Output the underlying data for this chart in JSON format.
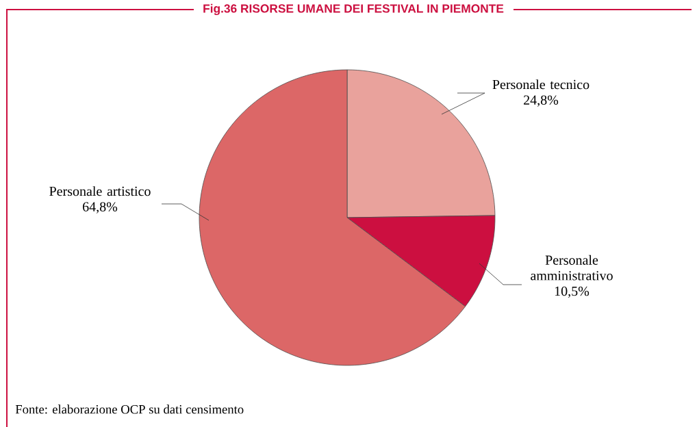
{
  "chart_data": {
    "type": "pie",
    "title": "Fig.36 RISORSE UMANE DEI FESTIVAL IN PIEMONTE",
    "categories": [
      "Personale tecnico",
      "Personale amministrativo",
      "Personale artistico"
    ],
    "values": [
      24.8,
      10.5,
      64.8
    ],
    "value_labels": [
      "24,8%",
      "10,5%",
      "64,8%"
    ],
    "colors": [
      "#e9a29c",
      "#cc0f40",
      "#dc6767"
    ],
    "annotations": [
      "Fonte: elaborazione OCP su dati censimento"
    ]
  }
}
